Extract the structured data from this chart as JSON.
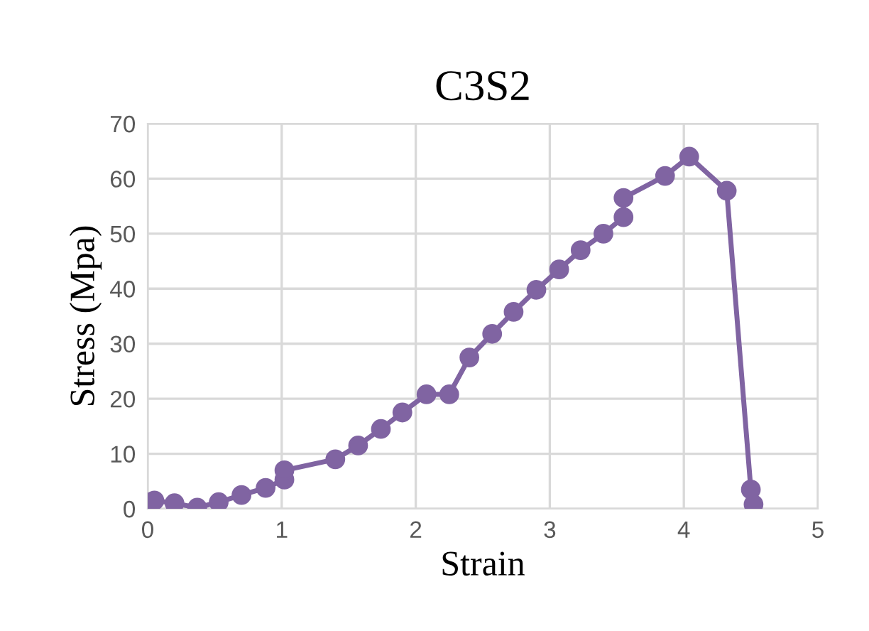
{
  "chart_data": {
    "type": "line",
    "title": "C3S2",
    "xlabel": "Strain",
    "ylabel": "Stress (Mpa)",
    "series": [
      {
        "color": "#8064a2",
        "x": [
          0,
          0.02,
          0.05,
          0.2,
          0.37,
          0.53,
          0.7,
          0.88,
          1.02,
          1.02,
          1.4,
          1.57,
          1.74,
          1.9,
          2.08,
          2.25,
          2.4,
          2.57,
          2.73,
          2.9,
          3.07,
          3.23,
          3.4,
          3.55,
          3.55,
          3.86,
          4.04,
          4.32,
          4.5,
          4.52
        ],
        "values": [
          0.3,
          1.2,
          1.5,
          1,
          0.2,
          1.2,
          2.5,
          3.8,
          5.3,
          7,
          9,
          11.5,
          14.5,
          17.5,
          20.8,
          20.8,
          27.5,
          31.8,
          35.8,
          39.8,
          43.5,
          47,
          50,
          53,
          56.5,
          60.5,
          64,
          57.8,
          3.5,
          0.8
        ]
      }
    ],
    "xlim": [
      0,
      5
    ],
    "xticks": [
      0,
      1,
      2,
      3,
      4,
      5
    ],
    "ylim": [
      0,
      70
    ],
    "yticks": [
      0,
      10,
      20,
      30,
      40,
      50,
      60,
      70
    ],
    "grid": true,
    "marker": "circle",
    "line_style": "solid"
  }
}
